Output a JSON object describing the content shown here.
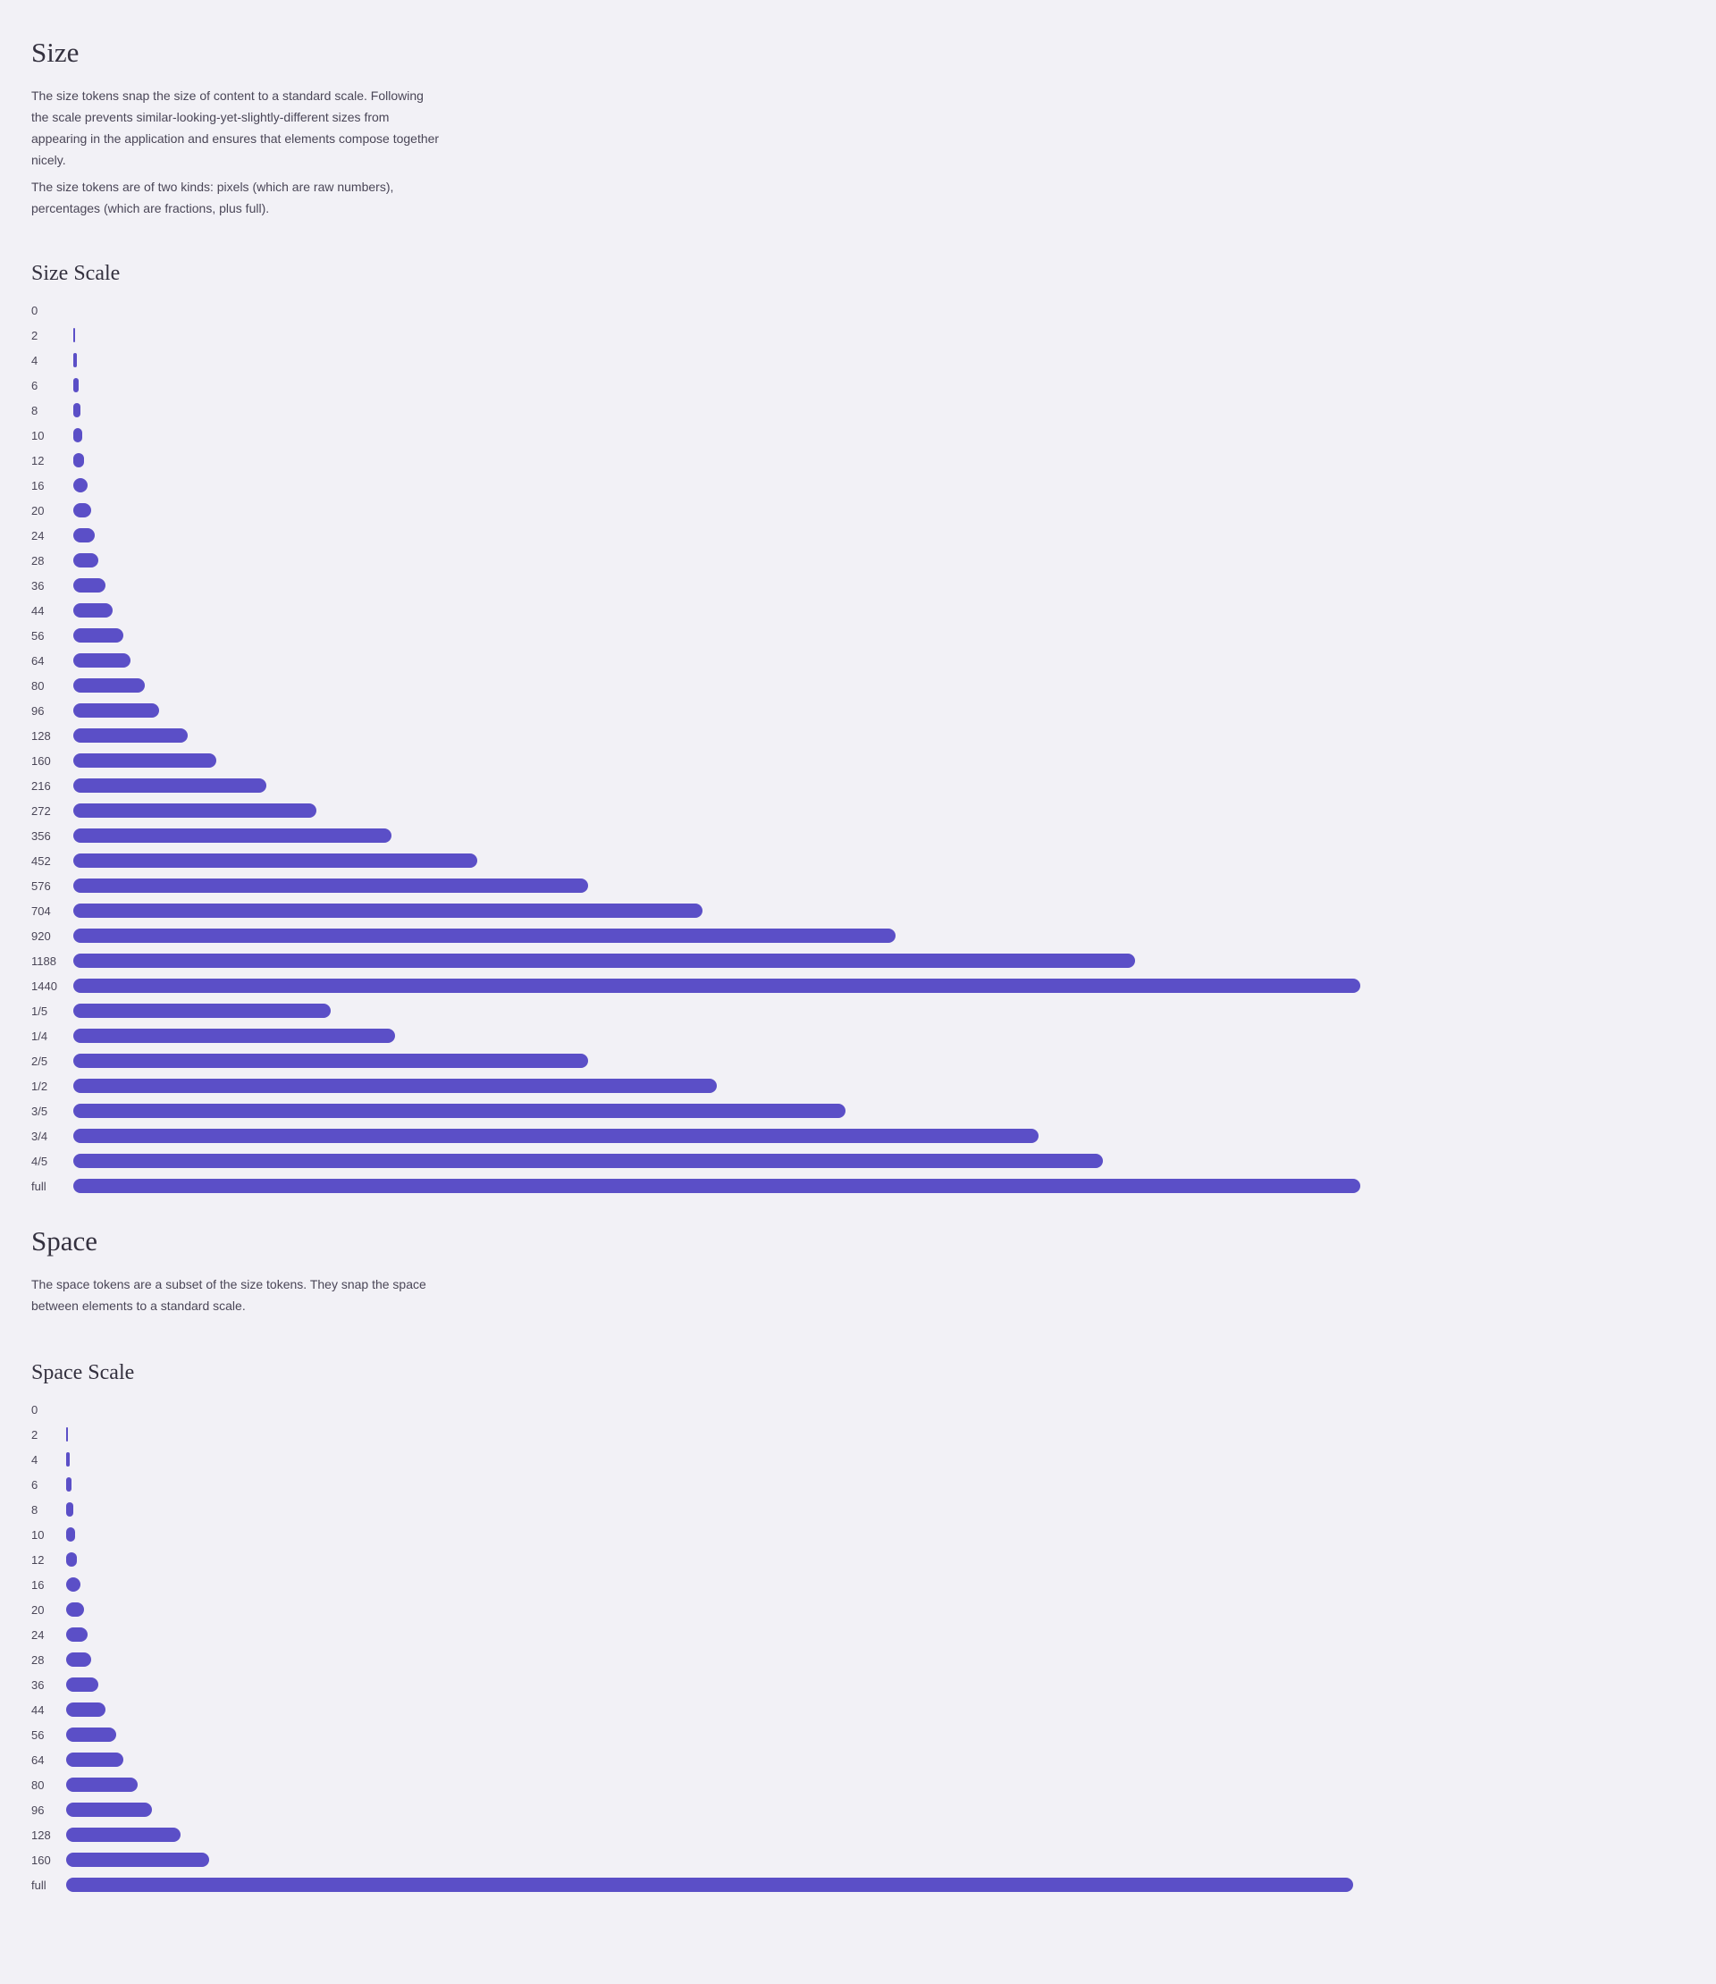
{
  "size": {
    "title": "Size",
    "paragraphs": [
      "The size tokens snap the size of content to a standard scale. Following the scale prevents similar-looking-yet-slightly-different sizes from appearing in the application and ensures that elements compose together nicely.",
      "The size tokens are of two kinds: pixels (which are raw numbers), percentages (which are fractions, plus full)."
    ],
    "scale": {
      "title": "Size Scale",
      "rows": [
        "0",
        "2",
        "4",
        "6",
        "8",
        "10",
        "12",
        "16",
        "20",
        "24",
        "28",
        "36",
        "44",
        "56",
        "64",
        "80",
        "96",
        "128",
        "160",
        "216",
        "272",
        "356",
        "452",
        "576",
        "704",
        "920",
        "1188",
        "1440",
        "1/5",
        "1/4",
        "2/5",
        "1/2",
        "3/5",
        "3/4",
        "4/5",
        "full"
      ]
    }
  },
  "space": {
    "title": "Space",
    "paragraphs": [
      "The space tokens are a subset of the size tokens. They snap the space between elements to a standard scale."
    ],
    "scale": {
      "title": "Space Scale",
      "rows": [
        "0",
        "2",
        "4",
        "6",
        "8",
        "10",
        "12",
        "16",
        "20",
        "24",
        "28",
        "36",
        "44",
        "56",
        "64",
        "80",
        "96",
        "128",
        "160",
        "full"
      ]
    }
  }
}
